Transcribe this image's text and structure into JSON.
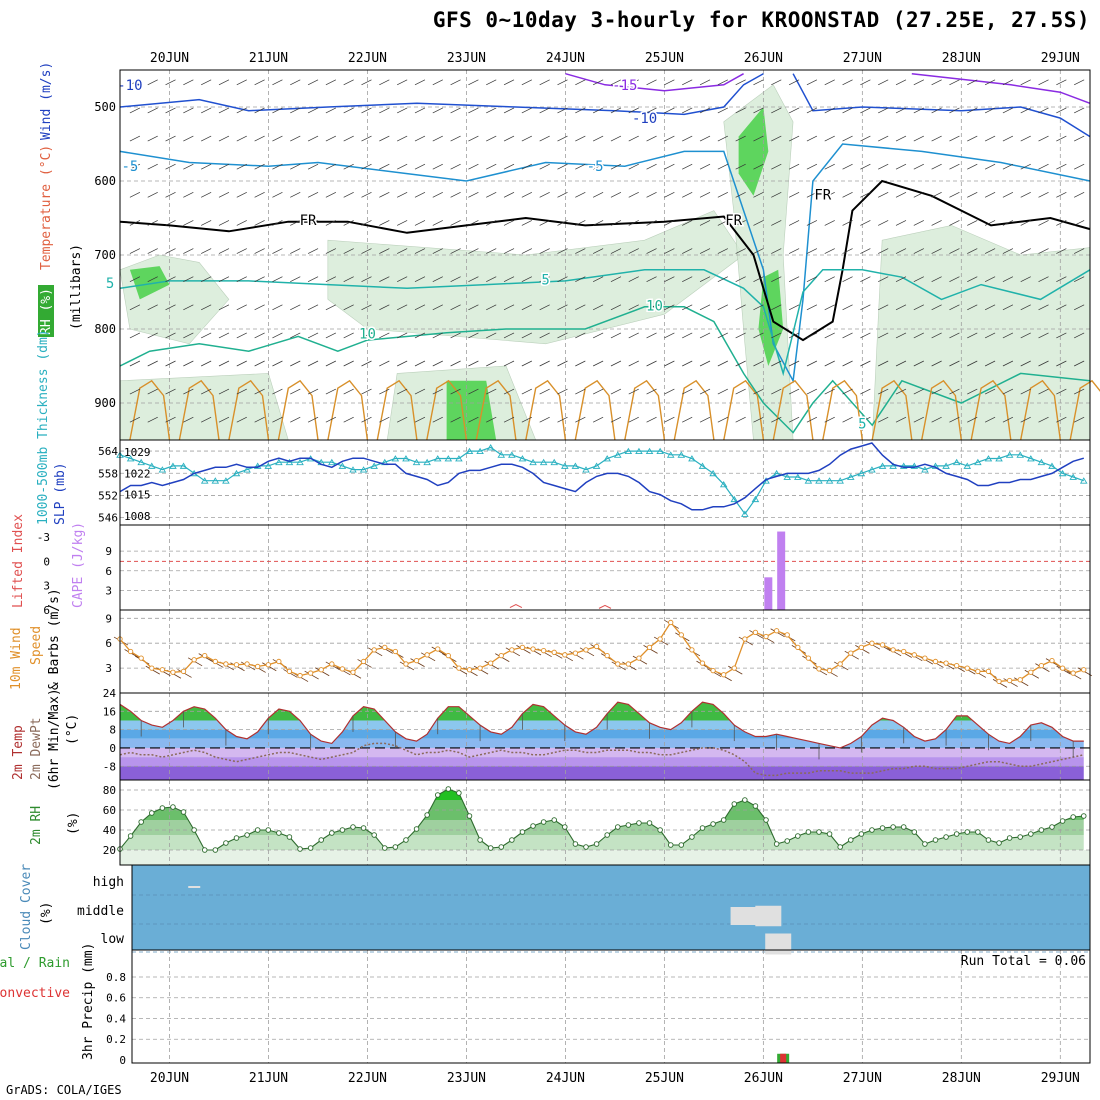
{
  "title": "GFS 0~10day 3-hourly for KROONSTAD (27.25E, 27.5S)",
  "credit": "GrADS: COLA/IGES",
  "dates": [
    "20JUN",
    "21JUN",
    "22JUN",
    "23JUN",
    "24JUN",
    "25JUN",
    "26JUN",
    "27JUN",
    "28JUN",
    "29JUN"
  ],
  "colors": {
    "grid": "#a0a0a0",
    "rh": "#2e8b2e",
    "temperature": "#d08a2a",
    "wind": "#1f3fbf",
    "thickness": "#2ab0c0",
    "slp": "#2040c0",
    "lifted_index": "#e05050",
    "cape": "#c080f0",
    "wind10": "#e0902a",
    "precip_total": "#33aa33",
    "precip_conv": "#dd3333",
    "cloud": "#6aaed6",
    "cloud_patch": "#e0e0e0"
  },
  "chart_data": [
    {
      "type": "heatmap",
      "panel": "upper-air",
      "ylabel_parts": {
        "rh": "RH (%)",
        "temperature": "Temperature (°C)",
        "wind": "Wind (m/s)"
      },
      "ylabel2": "(millibars)",
      "y_ticks": [
        500,
        600,
        700,
        800,
        900
      ],
      "ylim": [
        450,
        950
      ],
      "contour_labels": [
        {
          "text": "-15",
          "x_day": 24.6,
          "p": 470,
          "color": "#8a2be2"
        },
        {
          "text": "-10",
          "x_day": 19.6,
          "p": 470,
          "color": "#1f3fbf"
        },
        {
          "text": "-10",
          "x_day": 24.8,
          "p": 515,
          "color": "#1f3fbf"
        },
        {
          "text": "-5",
          "x_day": 19.6,
          "p": 580,
          "color": "#1e90d0"
        },
        {
          "text": "-5",
          "x_day": 24.3,
          "p": 580,
          "color": "#1e90d0"
        },
        {
          "text": "FR",
          "x_day": 21.4,
          "p": 653,
          "color": "#000000"
        },
        {
          "text": "FR",
          "x_day": 25.7,
          "p": 653,
          "color": "#000000"
        },
        {
          "text": "FR",
          "x_day": 26.6,
          "p": 618,
          "color": "#000000"
        },
        {
          "text": "5",
          "x_day": 19.4,
          "p": 738,
          "color": "#20b2aa"
        },
        {
          "text": "5",
          "x_day": 23.8,
          "p": 733,
          "color": "#20b2aa"
        },
        {
          "text": "10",
          "x_day": 24.9,
          "p": 768,
          "color": "#20b090"
        },
        {
          "text": "10",
          "x_day": 22.0,
          "p": 806,
          "color": "#20b090"
        },
        {
          "text": "5",
          "x_day": 27.0,
          "p": 928,
          "color": "#20b2aa"
        }
      ]
    },
    {
      "type": "line",
      "panel": "thickness-slp",
      "ylabel_thickness": "1000-500mb Thickness (dm)",
      "ylabel_slp": "SLP (mb)",
      "left_ticks": [
        546,
        552,
        558,
        564
      ],
      "right_ticks": [
        1008,
        1015,
        1022,
        1029
      ],
      "series": [
        {
          "name": "Thickness",
          "values": [
            563,
            562,
            561,
            560,
            559,
            560,
            560,
            558,
            556,
            556,
            556,
            558,
            559,
            560,
            560,
            561,
            561,
            561,
            562,
            561,
            561,
            560,
            559,
            559,
            560,
            561,
            562,
            562,
            561,
            561,
            562,
            562,
            562,
            564,
            564,
            565,
            563,
            563,
            562,
            561,
            561,
            561,
            560,
            560,
            559,
            560,
            562,
            563,
            564,
            564,
            564,
            564,
            563,
            563,
            562,
            560,
            558,
            555,
            551,
            547,
            551,
            556,
            558,
            557,
            557,
            556,
            556,
            556,
            556,
            557,
            558,
            559,
            560,
            560,
            560,
            560,
            559,
            560,
            560,
            561,
            560,
            561,
            562,
            562,
            563,
            563,
            562,
            561,
            560,
            558,
            557,
            556
          ]
        },
        {
          "name": "SLP",
          "values": [
            1016,
            1018,
            1018,
            1019,
            1018,
            1019,
            1020,
            1022,
            1023,
            1024,
            1024,
            1025,
            1024,
            1024,
            1026,
            1027,
            1026,
            1027,
            1027,
            1025,
            1024,
            1026,
            1027,
            1027,
            1026,
            1025,
            1025,
            1022,
            1021,
            1020,
            1018,
            1019,
            1022,
            1023,
            1023,
            1024,
            1025,
            1025,
            1024,
            1022,
            1019,
            1018,
            1017,
            1016,
            1019,
            1021,
            1022,
            1022,
            1021,
            1019,
            1016,
            1015,
            1013,
            1012,
            1010,
            1010,
            1011,
            1011,
            1012,
            1014,
            1017,
            1020,
            1021,
            1022,
            1022,
            1022,
            1023,
            1025,
            1028,
            1030,
            1031,
            1032,
            1028,
            1025,
            1024,
            1024,
            1025,
            1024,
            1022,
            1021,
            1020,
            1018,
            1018,
            1019,
            1019,
            1020,
            1020,
            1021,
            1022,
            1024,
            1026,
            1027
          ]
        }
      ]
    },
    {
      "type": "bar",
      "panel": "lifted-cape",
      "ylabel_li": "Lifted Index",
      "ylabel_cape": "CAPE (J/kg)",
      "li_ticks": [
        "-3",
        "0",
        "3",
        "6"
      ],
      "cape_ticks": [
        3,
        6,
        9
      ],
      "cape_bars": [
        {
          "x_day": 26.05,
          "value": 5.0
        },
        {
          "x_day": 26.18,
          "value": 12.0
        }
      ],
      "li_marks": [
        {
          "x_day": 23.5,
          "value": 5.7
        },
        {
          "x_day": 24.4,
          "value": 5.8
        }
      ]
    },
    {
      "type": "line",
      "panel": "wind10",
      "ylabel": "10m Wind Speed & Barbs (m/s)",
      "ticks": [
        3,
        6,
        9
      ],
      "series": [
        {
          "name": "Speed",
          "values": [
            6.5,
            5.0,
            4.2,
            3.0,
            2.8,
            2.5,
            2.6,
            4.0,
            4.5,
            3.8,
            3.5,
            3.4,
            3.5,
            3.2,
            3.4,
            3.8,
            2.6,
            2.1,
            2.4,
            2.8,
            3.5,
            2.9,
            2.5,
            3.8,
            5.2,
            5.5,
            5.0,
            3.5,
            3.9,
            4.6,
            5.3,
            4.5,
            3.0,
            2.8,
            3.0,
            3.6,
            4.5,
            5.2,
            5.5,
            5.3,
            5.1,
            4.9,
            4.6,
            4.8,
            5.2,
            5.6,
            4.5,
            3.5,
            3.5,
            4.2,
            5.5,
            6.5,
            8.5,
            7.0,
            5.2,
            3.6,
            2.7,
            2.2,
            3.0,
            6.5,
            7.3,
            6.8,
            7.5,
            7.0,
            5.5,
            4.2,
            2.9,
            2.7,
            3.5,
            4.8,
            5.5,
            6.0,
            5.8,
            5.2,
            5.0,
            4.6,
            4.2,
            3.8,
            3.6,
            3.3,
            3.0,
            2.6,
            2.6,
            1.4,
            1.5,
            1.6,
            2.5,
            3.3,
            3.9,
            3.0,
            2.4,
            2.8
          ]
        }
      ]
    },
    {
      "type": "area",
      "panel": "temperature",
      "ylabel": "2m Temp 2m DewPt (6hr Min/Max) (°C)",
      "ticks": [
        "-8",
        "0",
        "8",
        "16",
        "24"
      ],
      "series": [
        {
          "name": "2m Temp",
          "values": [
            19,
            16,
            12,
            10,
            9,
            12,
            16,
            18,
            17,
            13,
            8,
            5,
            4,
            7,
            13,
            17,
            16,
            12,
            6,
            3,
            2,
            7,
            14,
            18,
            17,
            12,
            7,
            4,
            3,
            6,
            13,
            18,
            18,
            14,
            10,
            7,
            6,
            9,
            15,
            19,
            18,
            14,
            10,
            7,
            6,
            9,
            15,
            20,
            19,
            15,
            11,
            9,
            8,
            11,
            16,
            20,
            19,
            15,
            10,
            7,
            5,
            5,
            6,
            5,
            4,
            3,
            2,
            1,
            0,
            2,
            5,
            10,
            13,
            12,
            9,
            5,
            3,
            4,
            8,
            14,
            14,
            10,
            6,
            3,
            2,
            5,
            10,
            11,
            9,
            5,
            3,
            3
          ]
        },
        {
          "name": "2m DewPt",
          "values": [
            -3,
            -2,
            -3,
            -3,
            -4,
            -3,
            -2,
            -1,
            -2,
            -4,
            -5,
            -6,
            -5,
            -4,
            -3,
            -2,
            -2,
            -3,
            -4,
            -5,
            -4,
            -3,
            -2,
            1,
            2,
            2,
            1,
            -1,
            -3,
            -2,
            -2,
            -1,
            -2,
            -4,
            -3,
            -2,
            -1,
            -2,
            -2,
            -3,
            -3,
            -2,
            -1,
            -1,
            -2,
            -2,
            -1,
            -1,
            -1,
            -2,
            -2,
            -3,
            -3,
            -2,
            -1,
            0,
            0,
            -1,
            -3,
            -6,
            -11,
            -12,
            -12,
            -11,
            -11,
            -11,
            -10,
            -10,
            -10,
            -11,
            -11,
            -11,
            -10,
            -9,
            -9,
            -8,
            -8,
            -9,
            -9,
            -9,
            -8,
            -7,
            -6,
            -6,
            -7,
            -8,
            -8,
            -7,
            -6,
            -5,
            -4,
            -3
          ]
        }
      ]
    },
    {
      "type": "area",
      "panel": "rh2m",
      "ylabel": "2m RH (%)",
      "ticks": [
        20,
        40,
        60,
        80
      ],
      "series": [
        {
          "name": "2m RH",
          "values": [
            21,
            34,
            48,
            57,
            62,
            63,
            58,
            40,
            20,
            20,
            27,
            32,
            35,
            40,
            40,
            37,
            33,
            21,
            22,
            30,
            37,
            40,
            43,
            42,
            35,
            22,
            23,
            30,
            41,
            55,
            75,
            81,
            77,
            54,
            30,
            22,
            23,
            30,
            38,
            44,
            48,
            50,
            43,
            26,
            23,
            26,
            35,
            43,
            45,
            47,
            47,
            40,
            25,
            25,
            33,
            42,
            46,
            50,
            66,
            70,
            64,
            50,
            26,
            29,
            34,
            38,
            38,
            36,
            23,
            30,
            36,
            40,
            42,
            43,
            43,
            38,
            26,
            30,
            33,
            36,
            38,
            38,
            30,
            27,
            32,
            33,
            36,
            40,
            43,
            49,
            53,
            54
          ]
        }
      ]
    },
    {
      "type": "heatmap",
      "panel": "cloud",
      "ylabel": "Cloud Cover (%)",
      "levels": [
        "high",
        "middle",
        "low"
      ],
      "patches": [
        {
          "level": "high",
          "x_day": 20.25,
          "value": 8
        },
        {
          "level": "middle",
          "x_day": 25.8,
          "value": 60
        },
        {
          "level": "middle",
          "x_day": 26.05,
          "value": 85
        },
        {
          "level": "low",
          "x_day": 26.15,
          "value": 90
        }
      ]
    },
    {
      "type": "bar",
      "panel": "precip",
      "ylabel_total": "Total / Rain",
      "ylabel_conv": "Convective",
      "ylabel_axis": "3hr Precip (mm)",
      "ticks": [
        "0",
        "0.2",
        "0.4",
        "0.6",
        "0.8"
      ],
      "ylim": [
        0,
        1
      ],
      "run_total_label": "Run Total = 0.06",
      "bars": [
        {
          "x_day": 26.2,
          "total": 0.06,
          "convective": 0.06
        }
      ]
    }
  ]
}
